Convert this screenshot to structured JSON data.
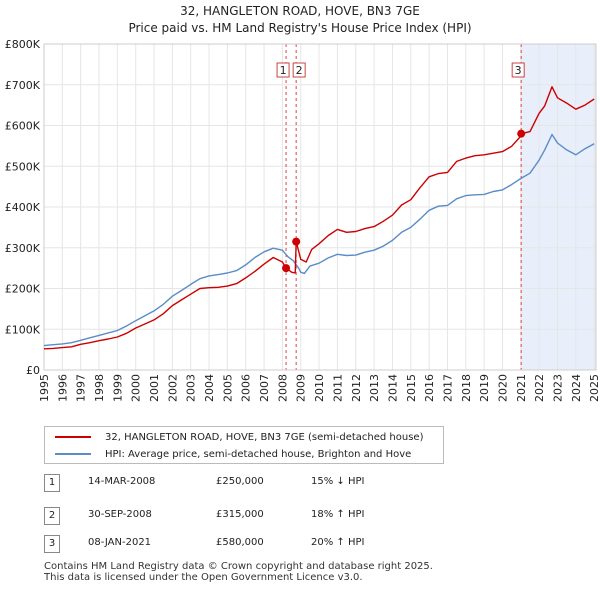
{
  "colors": {
    "property_line": "#cc0000",
    "hpi_line": "#5a8cc8",
    "shade": "#e8eefa",
    "grid": "#e6e6e6",
    "vline": "#dd4444"
  },
  "chart_data": {
    "type": "line",
    "title": "32, HANGLETON ROAD, HOVE, BN3 7GE",
    "subtitle": "Price paid vs. HM Land Registry's House Price Index (HPI)",
    "xlim": [
      1995,
      2025.1
    ],
    "ylim": [
      0,
      800000
    ],
    "grid": true,
    "x_ticks": [
      "1995",
      "1996",
      "1997",
      "1998",
      "1999",
      "2000",
      "2001",
      "2002",
      "2003",
      "2004",
      "2005",
      "2006",
      "2007",
      "2008",
      "2009",
      "2010",
      "2011",
      "2012",
      "2013",
      "2014",
      "2015",
      "2016",
      "2017",
      "2018",
      "2019",
      "2020",
      "2021",
      "2022",
      "2023",
      "2024",
      "2025"
    ],
    "y_ticks": [
      {
        "value": 0,
        "label": "£0"
      },
      {
        "value": 100000,
        "label": "£100K"
      },
      {
        "value": 200000,
        "label": "£200K"
      },
      {
        "value": 300000,
        "label": "£300K"
      },
      {
        "value": 400000,
        "label": "£400K"
      },
      {
        "value": 500000,
        "label": "£500K"
      },
      {
        "value": 600000,
        "label": "£600K"
      },
      {
        "value": 700000,
        "label": "£700K"
      },
      {
        "value": 800000,
        "label": "£800K"
      }
    ],
    "shaded_ranges": [
      [
        2021.02,
        2025.1
      ]
    ],
    "series": [
      {
        "name": "32, HANGLETON ROAD, HOVE, BN3 7GE (semi-detached house)",
        "color": "#cc0000",
        "x": [
          1995.0,
          1995.5,
          1996.0,
          1996.5,
          1997.0,
          1997.5,
          1998.0,
          1998.5,
          1999.0,
          1999.5,
          2000.0,
          2000.5,
          2001.0,
          2001.5,
          2002.0,
          2002.5,
          2003.0,
          2003.5,
          2004.0,
          2004.5,
          2005.0,
          2005.5,
          2006.0,
          2006.5,
          2007.0,
          2007.5,
          2008.0,
          2008.2,
          2008.5,
          2008.7,
          2008.75,
          2009.0,
          2009.3,
          2009.6,
          2010.0,
          2010.5,
          2011.0,
          2011.5,
          2012.0,
          2012.5,
          2013.0,
          2013.5,
          2014.0,
          2014.5,
          2015.0,
          2015.5,
          2016.0,
          2016.5,
          2017.0,
          2017.5,
          2018.0,
          2018.5,
          2019.0,
          2019.5,
          2020.0,
          2020.5,
          2021.0,
          2021.02,
          2021.5,
          2022.0,
          2022.3,
          2022.7,
          2023.0,
          2023.5,
          2024.0,
          2024.5,
          2025.0
        ],
        "values": [
          52000,
          53000,
          55000,
          57000,
          63000,
          67000,
          72000,
          76000,
          81000,
          90000,
          103000,
          113000,
          123000,
          138000,
          158000,
          172000,
          186000,
          200000,
          202000,
          203000,
          206000,
          212000,
          226000,
          242000,
          260000,
          276000,
          265000,
          250000,
          240000,
          238000,
          315000,
          272000,
          265000,
          296000,
          310000,
          330000,
          345000,
          338000,
          340000,
          347000,
          352000,
          365000,
          380000,
          405000,
          418000,
          447000,
          474000,
          482000,
          485000,
          512000,
          520000,
          526000,
          528000,
          532000,
          536000,
          549000,
          574000,
          580000,
          585000,
          630000,
          648000,
          695000,
          668000,
          655000,
          640000,
          650000,
          665000
        ]
      },
      {
        "name": "HPI: Average price, semi-detached house, Brighton and Hove",
        "color": "#5a8cc8",
        "x": [
          1995.0,
          1995.5,
          1996.0,
          1996.5,
          1997.0,
          1997.5,
          1998.0,
          1998.5,
          1999.0,
          1999.5,
          2000.0,
          2000.5,
          2001.0,
          2001.5,
          2002.0,
          2002.5,
          2003.0,
          2003.5,
          2004.0,
          2004.5,
          2005.0,
          2005.5,
          2006.0,
          2006.5,
          2007.0,
          2007.5,
          2008.0,
          2008.3,
          2008.6,
          2008.9,
          2009.0,
          2009.2,
          2009.5,
          2010.0,
          2010.5,
          2011.0,
          2011.5,
          2012.0,
          2012.5,
          2013.0,
          2013.5,
          2014.0,
          2014.5,
          2015.0,
          2015.5,
          2016.0,
          2016.5,
          2017.0,
          2017.5,
          2018.0,
          2018.5,
          2019.0,
          2019.5,
          2020.0,
          2020.5,
          2021.0,
          2021.5,
          2022.0,
          2022.3,
          2022.7,
          2023.0,
          2023.5,
          2024.0,
          2024.5,
          2025.0
        ],
        "values": [
          60000,
          62000,
          64000,
          67000,
          73000,
          79000,
          85000,
          91000,
          97000,
          108000,
          121000,
          133000,
          145000,
          161000,
          181000,
          195000,
          210000,
          224000,
          231000,
          234000,
          238000,
          244000,
          258000,
          276000,
          290000,
          299000,
          294000,
          278000,
          268000,
          249000,
          240000,
          237000,
          255000,
          262000,
          275000,
          284000,
          281000,
          282000,
          289000,
          294000,
          304000,
          318000,
          338000,
          350000,
          370000,
          392000,
          402000,
          404000,
          420000,
          428000,
          430000,
          431000,
          438000,
          442000,
          455000,
          470000,
          483000,
          515000,
          540000,
          578000,
          557000,
          540000,
          528000,
          543000,
          555000
        ]
      }
    ],
    "transactions": [
      {
        "id": "1",
        "x": 2008.2,
        "value": 250000,
        "date": "14-MAR-2008",
        "price": "£250,000",
        "hpi": "15% ↓ HPI"
      },
      {
        "id": "2",
        "x": 2008.75,
        "value": 315000,
        "date": "30-SEP-2008",
        "price": "£315,000",
        "hpi": "18% ↑ HPI"
      },
      {
        "id": "3",
        "x": 2021.02,
        "value": 580000,
        "date": "08-JAN-2021",
        "price": "£580,000",
        "hpi": "20% ↑ HPI"
      }
    ]
  },
  "legend": {
    "property_label": "32, HANGLETON ROAD, HOVE, BN3 7GE (semi-detached house)",
    "hpi_label": "HPI: Average price, semi-detached house, Brighton and Hove"
  },
  "footer": {
    "line1": "Contains HM Land Registry data © Crown copyright and database right 2025.",
    "line2": "This data is licensed under the Open Government Licence v3.0."
  }
}
